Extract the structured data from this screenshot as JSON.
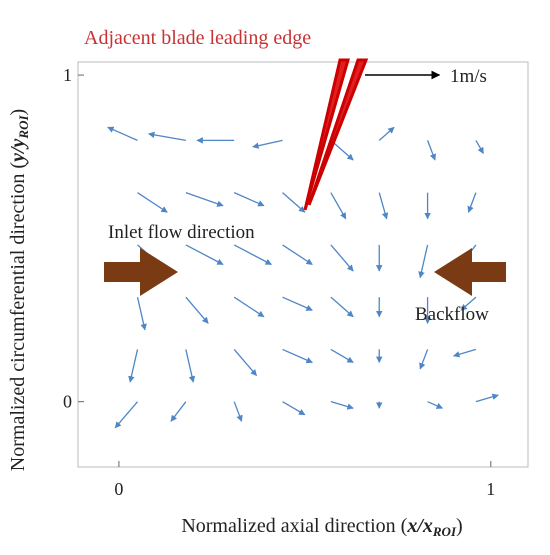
{
  "chart_data": {
    "type": "quiver",
    "xlabel": {
      "text": "Normalized axial direction (",
      "symbol": "x/x",
      "subscript": "ROI",
      "close": ")"
    },
    "ylabel": {
      "text": "Normalized circumferential direction (",
      "symbol": "y/y",
      "subscript": "ROI",
      "close": ")"
    },
    "xlim": [
      -0.11,
      1.1
    ],
    "ylim": [
      -0.2,
      1.04
    ],
    "xticks": [
      0,
      1
    ],
    "yticks": [
      0,
      1
    ],
    "color": "#4f86c6",
    "scale": 0.2,
    "key": {
      "value": 1,
      "label": "1m/s"
    },
    "annotations": [
      "Adjacent blade leading edge",
      "Inlet flow direction",
      "Backflow"
    ],
    "vectors": {
      "x": [
        0.05,
        0.18,
        0.31,
        0.44,
        0.57,
        0.7,
        0.83,
        0.96,
        0.05,
        0.18,
        0.31,
        0.44,
        0.57,
        0.7,
        0.83,
        0.96,
        0.05,
        0.18,
        0.31,
        0.44,
        0.57,
        0.7,
        0.83,
        0.96,
        0.05,
        0.18,
        0.31,
        0.44,
        0.57,
        0.7,
        0.83,
        0.96,
        0.05,
        0.18,
        0.31,
        0.44,
        0.57,
        0.7,
        0.83,
        0.96,
        0.05,
        0.18,
        0.31,
        0.44,
        0.57,
        0.7,
        0.83,
        0.96
      ],
      "y": [
        0.8,
        0.8,
        0.8,
        0.8,
        0.8,
        0.8,
        0.8,
        0.8,
        0.64,
        0.64,
        0.64,
        0.64,
        0.64,
        0.64,
        0.64,
        0.64,
        0.48,
        0.48,
        0.48,
        0.48,
        0.48,
        0.48,
        0.48,
        0.48,
        0.32,
        0.32,
        0.32,
        0.32,
        0.32,
        0.32,
        0.32,
        0.32,
        0.16,
        0.16,
        0.16,
        0.16,
        0.16,
        0.16,
        0.16,
        0.16,
        0,
        0,
        0,
        0,
        0,
        0,
        0,
        0
      ],
      "u": [
        -0.4,
        -0.5,
        -0.5,
        -0.4,
        0.3,
        0.2,
        0.1,
        0.1,
        0.4,
        0.5,
        0.4,
        0.3,
        0.2,
        0.1,
        0,
        -0.1,
        0.4,
        0.5,
        0.5,
        0.4,
        0.3,
        0,
        -0.1,
        -0.2,
        0.1,
        0.3,
        0.4,
        0.4,
        0.3,
        0,
        0,
        -0.2,
        -0.1,
        0.1,
        0.3,
        0.4,
        0.3,
        0,
        -0.1,
        -0.3,
        -0.3,
        -0.2,
        0.1,
        0.3,
        0.3,
        0,
        0.2,
        0.3
      ],
      "v": [
        0.2,
        0.1,
        0,
        -0.1,
        -0.3,
        0.2,
        -0.3,
        -0.2,
        -0.3,
        -0.2,
        -0.2,
        -0.3,
        -0.4,
        -0.4,
        -0.4,
        -0.3,
        -0.4,
        -0.3,
        -0.3,
        -0.3,
        -0.4,
        -0.4,
        -0.5,
        -0.3,
        -0.5,
        -0.4,
        -0.3,
        -0.2,
        -0.3,
        -0.3,
        -0.4,
        -0.2,
        -0.5,
        -0.5,
        -0.4,
        -0.2,
        -0.2,
        -0.2,
        -0.3,
        -0.1,
        -0.4,
        -0.3,
        -0.3,
        -0.2,
        -0.1,
        -0.1,
        -0.1,
        0.1
      ]
    }
  }
}
